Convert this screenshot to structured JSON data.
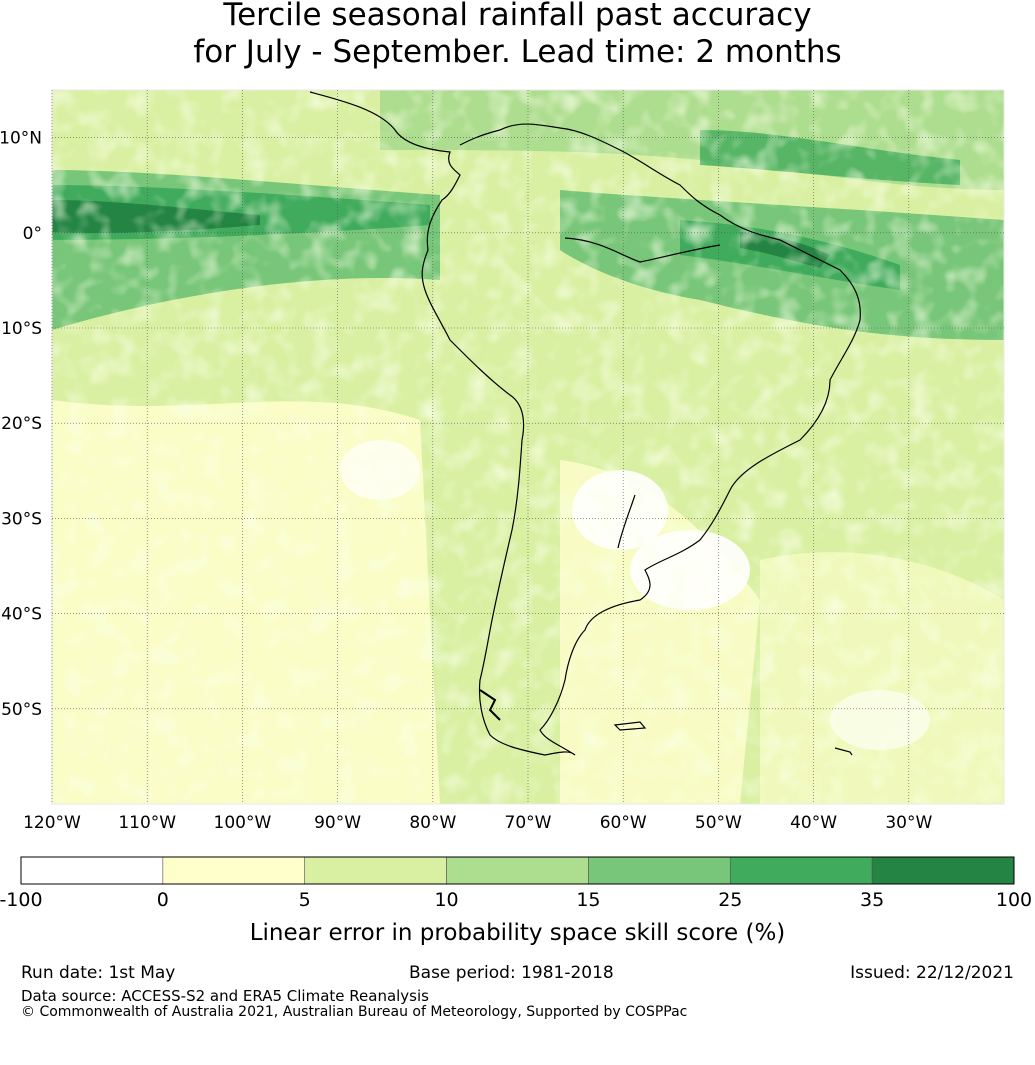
{
  "title_line1": "Tercile seasonal rainfall past accuracy",
  "title_line2": "for July - September. Lead time: 2 months",
  "map": {
    "lon_range": [
      -120,
      -20
    ],
    "lat_range": [
      -60,
      15
    ],
    "lat_labels": [
      "10°N",
      "0°",
      "10°S",
      "20°S",
      "30°S",
      "40°S",
      "50°S"
    ],
    "lat_values": [
      10,
      0,
      -10,
      -20,
      -30,
      -40,
      -50
    ],
    "lon_labels": [
      "120°W",
      "110°W",
      "100°W",
      "90°W",
      "80°W",
      "70°W",
      "60°W",
      "50°W",
      "40°W",
      "30°W"
    ],
    "lon_values": [
      -120,
      -110,
      -100,
      -90,
      -80,
      -70,
      -60,
      -50,
      -40,
      -30
    ]
  },
  "colorbar": {
    "ticks": [
      "-100",
      "0",
      "5",
      "10",
      "15",
      "25",
      "35",
      "100"
    ],
    "colors": [
      "#ffffff",
      "#ffffcc",
      "#d9f0a3",
      "#addd8e",
      "#78c679",
      "#41ab5d",
      "#238443"
    ],
    "label": "Linear error in probability space skill score (%)"
  },
  "footer": {
    "run_date": "Run date: 1st May",
    "base_period": "Base period: 1981-2018",
    "issued": "Issued: 22/12/2021",
    "data_source": "Data source: ACCESS-S2 and ERA5 Climate Reanalysis",
    "copyright": "© Commonwealth of Australia 2021, Australian Bureau of Meteorology, Supported by COSPPac"
  }
}
